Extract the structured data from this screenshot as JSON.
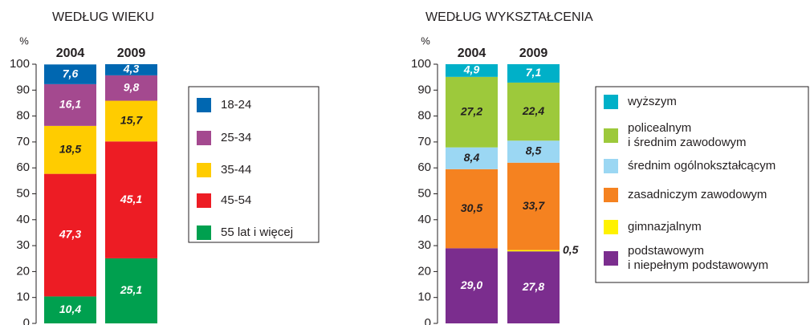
{
  "chart_data": [
    {
      "type": "bar",
      "stacked": true,
      "title": "WEDŁUG WIEKU",
      "y_label": "%",
      "categories": [
        "2004",
        "2009"
      ],
      "ylim": [
        0,
        100
      ],
      "yticks": [
        0,
        10,
        20,
        30,
        40,
        50,
        60,
        70,
        80,
        90,
        100
      ],
      "series": [
        {
          "name": "55 lat i więcej",
          "color": "#00a04f",
          "label_color": "#ffffff",
          "values": [
            10.4,
            25.1
          ],
          "value_labels": [
            "10,4",
            "25,1"
          ]
        },
        {
          "name": "45-54",
          "color": "#ed1c24",
          "label_color": "#ffffff",
          "values": [
            47.3,
            45.1
          ],
          "value_labels": [
            "47,3",
            "45,1"
          ]
        },
        {
          "name": "35-44",
          "color": "#ffcc00",
          "label_color": "#231f20",
          "values": [
            18.5,
            15.7
          ],
          "value_labels": [
            "18,5",
            "15,7"
          ]
        },
        {
          "name": "25-34",
          "color": "#a4498f",
          "label_color": "#ffffff",
          "values": [
            16.1,
            9.8
          ],
          "value_labels": [
            "16,1",
            "9,8"
          ]
        },
        {
          "name": "18-24",
          "color": "#0067b1",
          "label_color": "#ffffff",
          "values": [
            7.6,
            4.3
          ],
          "value_labels": [
            "7,6",
            "4,3"
          ]
        }
      ]
    },
    {
      "type": "bar",
      "stacked": true,
      "title": "WEDŁUG WYKSZTAŁCENIA",
      "y_label": "%",
      "categories": [
        "2004",
        "2009"
      ],
      "ylim": [
        0,
        100
      ],
      "yticks": [
        0,
        10,
        20,
        30,
        40,
        50,
        60,
        70,
        80,
        90,
        100
      ],
      "series": [
        {
          "name": "podstawowym\ni niepełnym podstawowym",
          "color": "#7b2d8e",
          "label_color": "#ffffff",
          "values": [
            29.0,
            27.8
          ],
          "value_labels": [
            "29,0",
            "27,8"
          ]
        },
        {
          "name": "gimnazjalnym",
          "color": "#fff200",
          "label_color": "#231f20",
          "values": [
            null,
            0.5
          ],
          "value_labels": [
            null,
            "0,5"
          ]
        },
        {
          "name": "zasadniczym zawodowym",
          "color": "#f58220",
          "label_color": "#231f20",
          "values": [
            30.5,
            33.7
          ],
          "value_labels": [
            "30,5",
            "33,7"
          ]
        },
        {
          "name": "średnim ogólnokształcącym",
          "color": "#9bd7f3",
          "label_color": "#231f20",
          "values": [
            8.4,
            8.5
          ],
          "value_labels": [
            "8,4",
            "8,5"
          ]
        },
        {
          "name": "policealnym\ni średnim zawodowym",
          "color": "#9dc93b",
          "label_color": "#231f20",
          "values": [
            27.2,
            22.4
          ],
          "value_labels": [
            "27,2",
            "22,4"
          ]
        },
        {
          "name": "wyższym",
          "color": "#00b0c8",
          "label_color": "#ffffff",
          "values": [
            4.9,
            7.1
          ],
          "value_labels": [
            "4,9",
            "7,1"
          ]
        }
      ]
    }
  ]
}
